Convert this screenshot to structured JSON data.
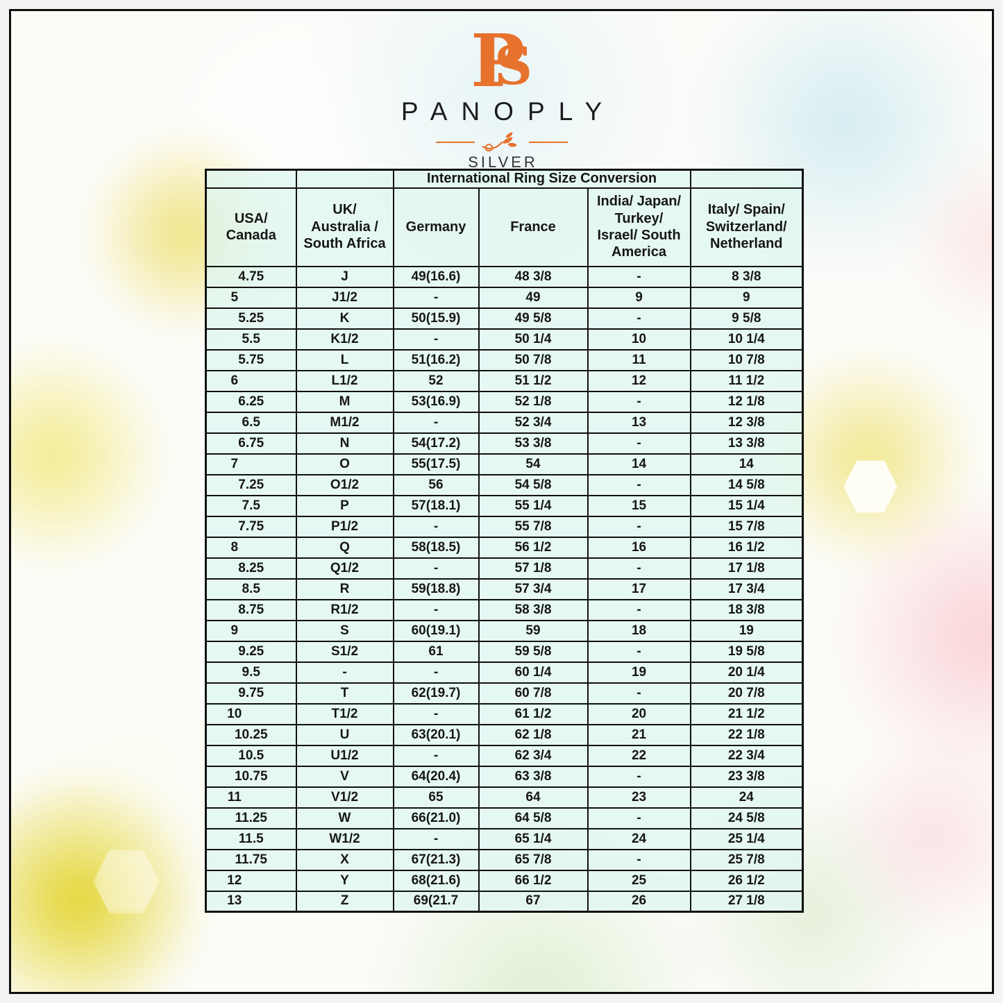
{
  "theme": {
    "accent_color": "#E7722D",
    "table_border_color": "#101010",
    "cell_bg_color": "rgba(223,246,241,0.78)",
    "text_color": "#161616"
  },
  "logo": {
    "monogram_p": "P",
    "monogram_s": "S",
    "brand": "PANOPLY",
    "sub_brand": "SILVER"
  },
  "chart_data": {
    "type": "table",
    "title": "International Ring Size Conversion",
    "columns": [
      "USA/ Canada",
      "UK/ Australia / South Africa",
      "Germany",
      "France",
      "India/ Japan/ Turkey/ Israel/ South America",
      "Italy/ Spain/ Switzerland/ Netherland"
    ],
    "columns_display": [
      "USA/\nCanada",
      "UK/\nAustralia /\nSouth Africa",
      "Germany",
      "France",
      "India/ Japan/\nTurkey/\nIsrael/ South\nAmerica",
      "Italy/ Spain/\nSwitzerland/\nNetherland"
    ],
    "rows": [
      [
        "4.75",
        "J",
        "49(16.6)",
        "48 3/8",
        "-",
        "8 3/8"
      ],
      [
        "5",
        "J1/2",
        "-",
        "49",
        "9",
        "9"
      ],
      [
        "5.25",
        "K",
        "50(15.9)",
        "49 5/8",
        "-",
        "9 5/8"
      ],
      [
        "5.5",
        "K1/2",
        "-",
        "50 1/4",
        "10",
        "10 1/4"
      ],
      [
        "5.75",
        "L",
        "51(16.2)",
        "50 7/8",
        "11",
        "10 7/8"
      ],
      [
        "6",
        "L1/2",
        "52",
        "51 1/2",
        "12",
        "11 1/2"
      ],
      [
        "6.25",
        "M",
        "53(16.9)",
        "52 1/8",
        "-",
        "12 1/8"
      ],
      [
        "6.5",
        "M1/2",
        "-",
        "52 3/4",
        "13",
        "12 3/8"
      ],
      [
        "6.75",
        "N",
        "54(17.2)",
        "53 3/8",
        "-",
        "13 3/8"
      ],
      [
        "7",
        "O",
        "55(17.5)",
        "54",
        "14",
        "14"
      ],
      [
        "7.25",
        "O1/2",
        "56",
        "54 5/8",
        "-",
        "14 5/8"
      ],
      [
        "7.5",
        "P",
        "57(18.1)",
        "55 1/4",
        "15",
        "15 1/4"
      ],
      [
        "7.75",
        "P1/2",
        "-",
        "55 7/8",
        "-",
        "15 7/8"
      ],
      [
        "8",
        "Q",
        "58(18.5)",
        "56 1/2",
        "16",
        "16 1/2"
      ],
      [
        "8.25",
        "Q1/2",
        "-",
        "57 1/8",
        "-",
        "17 1/8"
      ],
      [
        "8.5",
        "R",
        "59(18.8)",
        "57 3/4",
        "17",
        "17 3/4"
      ],
      [
        "8.75",
        "R1/2",
        "-",
        "58 3/8",
        "-",
        "18 3/8"
      ],
      [
        "9",
        "S",
        "60(19.1)",
        "59",
        "18",
        "19"
      ],
      [
        "9.25",
        "S1/2",
        "61",
        "59 5/8",
        "-",
        "19 5/8"
      ],
      [
        "9.5",
        "-",
        "-",
        "60 1/4",
        "19",
        "20 1/4"
      ],
      [
        "9.75",
        "T",
        "62(19.7)",
        "60 7/8",
        "-",
        "20 7/8"
      ],
      [
        "10",
        "T1/2",
        "-",
        "61 1/2",
        "20",
        "21 1/2"
      ],
      [
        "10.25",
        "U",
        "63(20.1)",
        "62 1/8",
        "21",
        "22 1/8"
      ],
      [
        "10.5",
        "U1/2",
        "-",
        "62 3/4",
        "22",
        "22 3/4"
      ],
      [
        "10.75",
        "V",
        "64(20.4)",
        "63 3/8",
        "-",
        "23 3/8"
      ],
      [
        "11",
        "V1/2",
        "65",
        "64",
        "23",
        "24"
      ],
      [
        "11.25",
        "W",
        "66(21.0)",
        "64 5/8",
        "-",
        "24 5/8"
      ],
      [
        "11.5",
        "W1/2",
        "-",
        "65 1/4",
        "24",
        "25 1/4"
      ],
      [
        "11.75",
        "X",
        "67(21.3)",
        "65 7/8",
        "-",
        "25 7/8"
      ],
      [
        "12",
        "Y",
        "68(21.6)",
        "66 1/2",
        "25",
        "26 1/2"
      ],
      [
        "13",
        "Z",
        "69(21.7",
        "67",
        "26",
        "27 1/8"
      ]
    ]
  }
}
